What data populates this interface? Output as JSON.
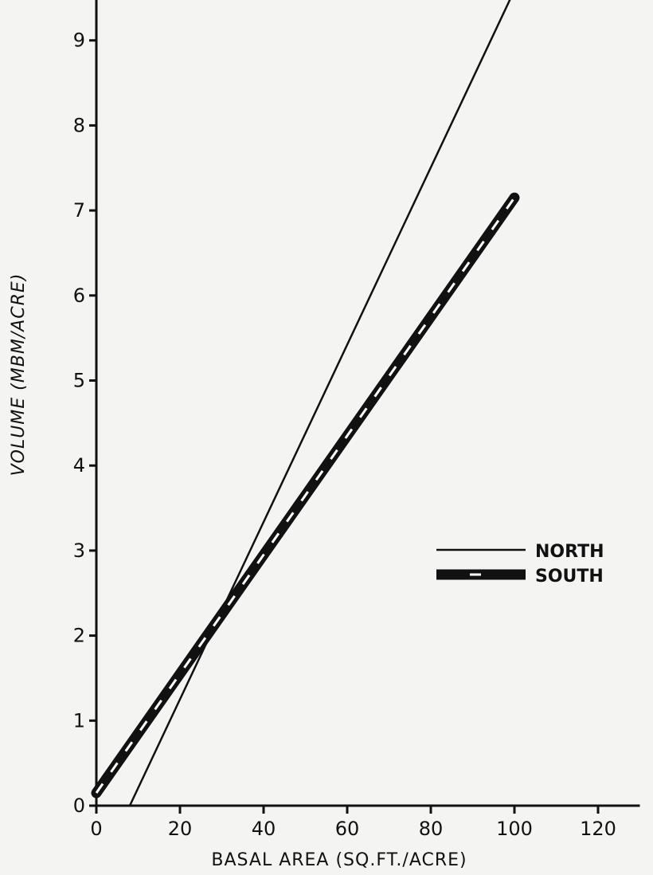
{
  "chart_data": {
    "type": "line",
    "title": "",
    "xlabel": "BASAL AREA (SQ.FT./ACRE)",
    "ylabel": "VOLUME (MBM/ACRE)",
    "xlim": [
      0,
      130
    ],
    "ylim": [
      0,
      9.5
    ],
    "xticks": [
      0,
      20,
      40,
      60,
      80,
      100,
      120
    ],
    "yticks": [
      0,
      1,
      2,
      3,
      4,
      5,
      6,
      7,
      8,
      9
    ],
    "grid": false,
    "legend_position": "right",
    "series": [
      {
        "name": "NORTH",
        "style": "thin-line",
        "color": "#111111",
        "x": [
          8,
          102
        ],
        "y": [
          0,
          9.8
        ]
      },
      {
        "name": "SOUTH",
        "style": "thick-dashed-white",
        "color": "#111111",
        "x": [
          0,
          100
        ],
        "y": [
          0.15,
          7.15
        ]
      }
    ]
  }
}
